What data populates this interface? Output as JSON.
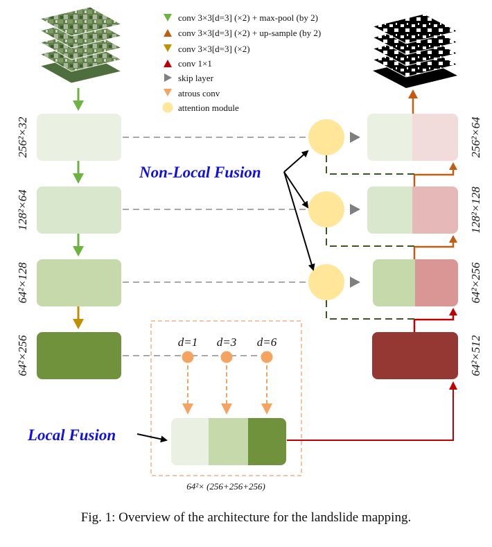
{
  "legend": [
    {
      "icon": "triangle-down",
      "color": "#6db33f",
      "label": "conv 3×3[d=3] (×2) + max-pool (by 2)"
    },
    {
      "icon": "triangle-up",
      "color": "#c55a11",
      "label": "conv 3×3[d=3] (×2) + up-sample (by 2)"
    },
    {
      "icon": "triangle-down",
      "color": "#bf9000",
      "label": "conv 3×3[d=3] (×2)"
    },
    {
      "icon": "triangle-up",
      "color": "#c00000",
      "label": "conv 1×1"
    },
    {
      "icon": "triangle-right",
      "color": "#7f7f7f",
      "label": "skip layer"
    },
    {
      "icon": "triangle-down",
      "color": "#f4a460",
      "label": "atrous conv"
    },
    {
      "icon": "circle",
      "color": "#ffe699",
      "label": "attention module"
    }
  ],
  "encoder": [
    {
      "dim": "256²×32",
      "color": "#ebf1e2"
    },
    {
      "dim": "128²×64",
      "color": "#d9e7cc"
    },
    {
      "dim": "64²×128",
      "color": "#c6d9aa"
    },
    {
      "dim": "64²×256",
      "color": "#70923c"
    }
  ],
  "decoder": [
    {
      "dim": "256²×64",
      "left_color": "#ebf1e2",
      "right_color": "#f2dcdb"
    },
    {
      "dim": "128²×128",
      "left_color": "#d9e7cc",
      "right_color": "#e6b8b7"
    },
    {
      "dim": "64²×256",
      "left_color": "#c6d9aa",
      "right_color": "#d99694"
    },
    {
      "dim": "64²×512",
      "color": "#953732"
    }
  ],
  "atrous": {
    "rates": [
      "d=1",
      "d=3",
      "d=6"
    ],
    "concat_label": "64²× (256+256+256)",
    "concat_colors": [
      "#ebf1e2",
      "#c6d9aa",
      "#70923c"
    ]
  },
  "labels": {
    "non_local_fusion": "Non-Local Fusion",
    "local_fusion": "Local Fusion"
  },
  "caption": "Fig. 1: Overview of the architecture for the landslide mapping."
}
